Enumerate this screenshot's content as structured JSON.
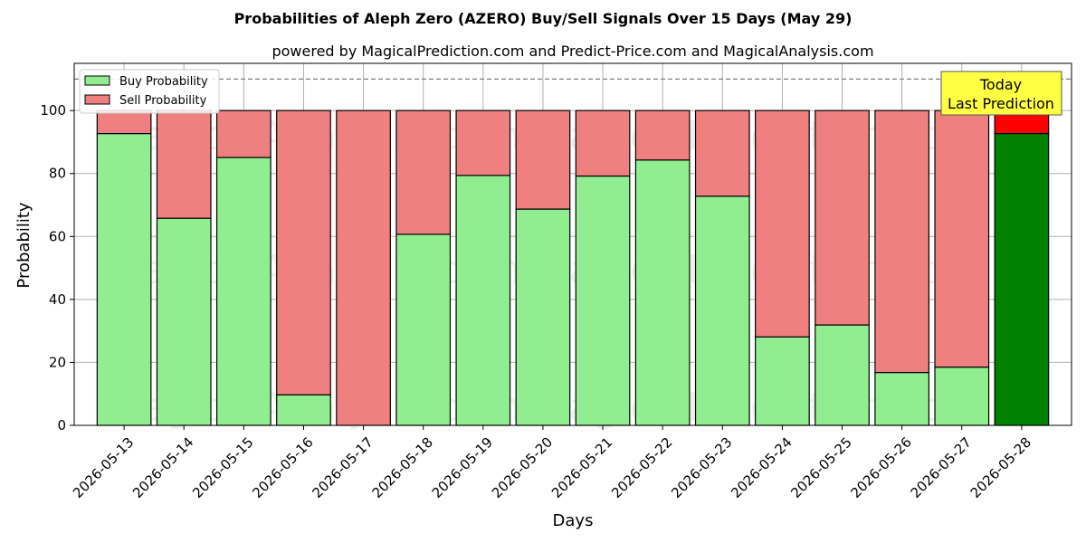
{
  "chart_data": {
    "type": "bar",
    "stacked": true,
    "title": "Probabilities of Aleph Zero (AZERO) Buy/Sell Signals Over 15 Days (May 29)",
    "subtitle": "powered by MagicalPrediction.com and Predict-Price.com and MagicalAnalysis.com",
    "xlabel": "Days",
    "ylabel": "Probability",
    "ylim": [
      0,
      115
    ],
    "yticks": [
      0,
      20,
      40,
      60,
      80,
      100
    ],
    "grid": true,
    "legend_position": "top-left",
    "categories": [
      "2026-05-13",
      "2026-05-14",
      "2026-05-15",
      "2026-05-16",
      "2026-05-17",
      "2026-05-18",
      "2026-05-19",
      "2026-05-20",
      "2026-05-21",
      "2026-05-22",
      "2026-05-23",
      "2026-05-24",
      "2026-05-25",
      "2026-05-26",
      "2026-05-27",
      "2026-05-28"
    ],
    "series": [
      {
        "name": "Buy Probability",
        "color": "#90ee90",
        "values": [
          92.7,
          65.8,
          85.1,
          9.7,
          0.0,
          60.7,
          79.4,
          68.7,
          79.2,
          84.3,
          72.8,
          28.1,
          31.9,
          16.8,
          18.5,
          92.7
        ]
      },
      {
        "name": "Sell Probability",
        "color": "#f08080",
        "values": [
          7.3,
          34.2,
          14.9,
          90.3,
          100.0,
          39.3,
          20.6,
          31.3,
          20.8,
          15.7,
          27.2,
          71.9,
          68.1,
          83.2,
          81.5,
          7.3
        ]
      }
    ],
    "highlight": {
      "index": 15,
      "buy_color": "#008000",
      "sell_color": "#ff0000"
    },
    "reference_line": {
      "y": 110,
      "style": "dashed"
    },
    "annotation": {
      "line1": "Today",
      "line2": "Last Prediction",
      "background": "#ffff44"
    },
    "watermarks": [
      "MagicalAnalysis.com",
      "MagicalPrediction.com"
    ]
  }
}
